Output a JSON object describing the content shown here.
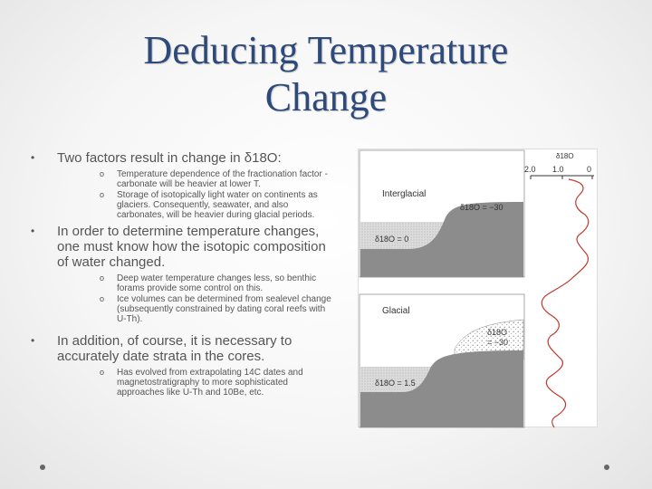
{
  "slide": {
    "title_line1": "Deducing Temperature",
    "title_line2": "Change"
  },
  "bullets": [
    {
      "marker": "•",
      "text": "Two factors result in change in δ18O:",
      "subs": [
        {
          "marker": "o",
          "text": "Temperature dependence of the fractionation factor - carbonate will be heavier at lower T."
        },
        {
          "marker": "o",
          "text": "Storage of isotopically light water on continents as glaciers. Consequently, seawater, and also carbonates, will be heavier during glacial periods."
        }
      ]
    },
    {
      "marker": "•",
      "text": "In order to determine temperature changes, one must know how the isotopic composition of water changed.",
      "subs": [
        {
          "marker": "o",
          "text": "Deep water temperature changes less, so benthic forams provide some control on this."
        },
        {
          "marker": "o",
          "text": "Ice volumes can be determined from sealevel change (subsequently constrained by dating coral reefs with U-Th)."
        }
      ]
    },
    {
      "marker": "•",
      "text": "In addition, of course, it is necessary to accurately date strata in the cores.",
      "subs": [
        {
          "marker": "o",
          "text": "Has evolved from extrapolating 14C dates and magnetostratigraphy to more sophisticated approaches like U-Th and 10Be, etc."
        }
      ]
    }
  ],
  "figure": {
    "interglacial_label": "Interglacial",
    "interglacial_land_value": "δ18O = −30",
    "interglacial_ocean_value": "δ18O = 0",
    "glacial_label": "Glacial",
    "glacial_ice_value": "δ18O\n= −30",
    "glacial_ice_value_line1": "δ18O",
    "glacial_ice_value_line2": "= −30",
    "glacial_ocean_value": "δ18O = 1.5",
    "axis_title": "δ18O",
    "axis_ticks": [
      "2.0",
      "1.0",
      "0"
    ],
    "curve_color": "#c0392b"
  }
}
